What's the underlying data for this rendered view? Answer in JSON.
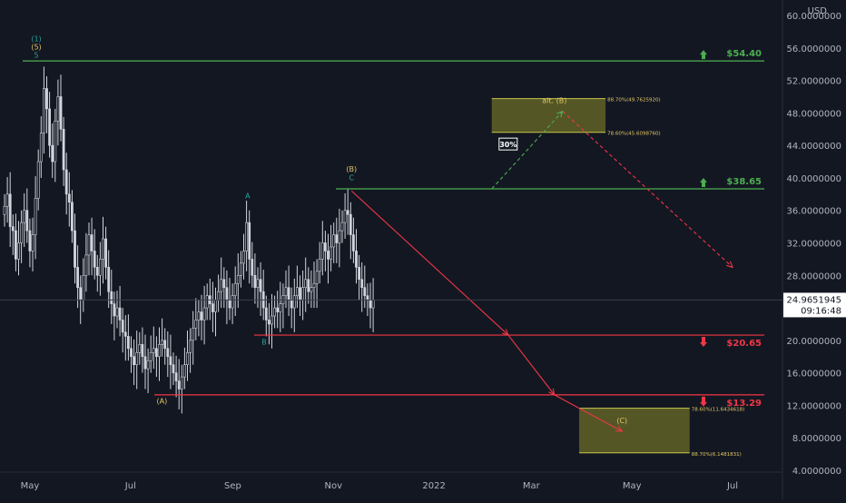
{
  "chart_data": {
    "type": "candlestick",
    "currency_label": "USD",
    "y_axis": {
      "min": 4,
      "max": 60,
      "ticks": [
        "4.0000000",
        "8.0000000",
        "12.0000000",
        "16.0000000",
        "20.0000000",
        "24.0000000",
        "28.0000000",
        "32.0000000",
        "36.0000000",
        "40.0000000",
        "44.0000000",
        "48.0000000",
        "52.0000000",
        "56.0000000",
        "60.0000000"
      ],
      "tick_values": [
        4,
        8,
        12,
        16,
        20,
        24,
        28,
        32,
        36,
        40,
        44,
        48,
        52,
        56,
        60
      ]
    },
    "x_axis": {
      "labels": [
        "May",
        "Jul",
        "Sep",
        "Nov",
        "2022",
        "Mar",
        "May",
        "Jul"
      ],
      "label_dates": [
        "2021-05-01",
        "2021-07-01",
        "2021-09-01",
        "2021-11-01",
        "2022-01-01",
        "2022-03-01",
        "2022-05-01",
        "2022-07-01"
      ]
    },
    "last_price": {
      "value": 24.9651945,
      "label": "24.9651945",
      "countdown": "09:16:48"
    },
    "candles_close": [
      36.5,
      38.0,
      34.0,
      33.5,
      30.0,
      32.0,
      34.5,
      36.0,
      33.5,
      31.0,
      33.0,
      37.5,
      42.0,
      45.5,
      51.0,
      48.5,
      44.0,
      42.0,
      47.0,
      50.0,
      46.0,
      41.0,
      38.0,
      37.0,
      33.5,
      29.0,
      26.5,
      25.0,
      28.0,
      30.5,
      33.0,
      31.0,
      29.0,
      28.0,
      30.0,
      32.5,
      29.0,
      26.0,
      24.5,
      23.0,
      24.0,
      22.5,
      21.0,
      20.5,
      19.0,
      18.0,
      17.0,
      18.5,
      19.5,
      18.0,
      16.5,
      17.5,
      18.5,
      19.0,
      18.0,
      19.5,
      20.0,
      19.0,
      18.0,
      17.0,
      16.0,
      15.0,
      14.0,
      15.5,
      17.0,
      18.5,
      20.0,
      21.5,
      22.5,
      23.5,
      22.5,
      24.0,
      25.5,
      24.5,
      23.5,
      25.0,
      26.0,
      27.5,
      26.5,
      25.0,
      24.0,
      25.5,
      27.0,
      28.0,
      29.5,
      31.0,
      34.5,
      30.0,
      28.0,
      26.5,
      27.5,
      26.0,
      24.0,
      22.5,
      22.0,
      23.0,
      24.0,
      23.5,
      24.5,
      25.5,
      26.5,
      25.0,
      24.0,
      25.5,
      26.5,
      25.0,
      26.5,
      27.5,
      26.0,
      26.5,
      27.0,
      28.5,
      30.0,
      32.0,
      31.0,
      30.0,
      31.5,
      33.0,
      32.0,
      33.5,
      34.5,
      36.0,
      35.5,
      33.0,
      31.0,
      29.0,
      27.5,
      26.5,
      25.5,
      25.0,
      24.0,
      24.97
    ],
    "levels": [
      {
        "value": 54.4,
        "label": "$54.40",
        "color": "#4caf50",
        "direction": "up"
      },
      {
        "value": 38.65,
        "label": "$38.65",
        "color": "#4caf50",
        "direction": "up"
      },
      {
        "value": 20.65,
        "label": "$20.65",
        "color": "#f23645",
        "direction": "down"
      },
      {
        "value": 13.29,
        "label": "$13.29",
        "color": "#f23645",
        "direction": "down"
      }
    ],
    "wave_labels": [
      {
        "text": "(1)",
        "color": "#26a69a",
        "date": "2021-05-01",
        "price": 56.8
      },
      {
        "text": "(5)",
        "color": "#e3c865",
        "date": "2021-05-01",
        "price": 55.8
      },
      {
        "text": "5",
        "color": "#26a69a",
        "date": "2021-05-01",
        "price": 54.8
      },
      {
        "text": "A",
        "color": "#26a69a",
        "date": "2021-09-10",
        "price": 37.5
      },
      {
        "text": "(B)",
        "color": "#e3c865",
        "date": "2021-11-12",
        "price": 40.8
      },
      {
        "text": "C",
        "color": "#26a69a",
        "date": "2021-11-12",
        "price": 39.7
      },
      {
        "text": "B",
        "color": "#26a69a",
        "date": "2021-09-20",
        "price": 19.5
      },
      {
        "text": "(A)",
        "color": "#e3c865",
        "date": "2021-07-20",
        "price": 12.2
      },
      {
        "text": "alt. (B)",
        "color": "#e3c865",
        "date": "2022-03-15",
        "price": 49.2
      },
      {
        "text": "(C)",
        "color": "#e3c865",
        "date": "2022-04-25",
        "price": 9.8
      }
    ],
    "target_zones": [
      {
        "top_label": "88.70%(49.7625920)",
        "bottom_label": "78.60%(45.6098760)",
        "top": 49.76,
        "bottom": 45.61,
        "start": "2022-02-05",
        "end": "2022-04-15"
      },
      {
        "top_label": "78.60%(11.6434618)",
        "bottom_label": "88.70%(6.1481831)",
        "top": 11.64,
        "bottom": 6.15,
        "start": "2022-03-30",
        "end": "2022-06-05"
      }
    ],
    "probability_badge": "30%",
    "projections": [
      {
        "style": "solid",
        "color": "#f23645",
        "from_date": "2021-11-12",
        "from_price": 38.4,
        "to_date": "2022-02-15",
        "to_price": 20.65
      },
      {
        "style": "solid",
        "color": "#f23645",
        "from_date": "2022-02-15",
        "from_price": 20.65,
        "to_date": "2022-03-15",
        "to_price": 13.29
      },
      {
        "style": "solid",
        "color": "#f23645",
        "from_date": "2022-03-15",
        "from_price": 13.29,
        "to_date": "2022-04-25",
        "to_price": 8.8
      },
      {
        "style": "dashed",
        "color": "#4caf50",
        "from_date": "2022-02-05",
        "from_price": 38.65,
        "to_date": "2022-03-20",
        "to_price": 48.2
      },
      {
        "style": "dashed",
        "color": "#f23645",
        "from_date": "2022-03-20",
        "from_price": 48.2,
        "to_date": "2022-07-01",
        "to_price": 29.0
      }
    ],
    "line_colors": {
      "support": "#f23645",
      "resistance": "#4caf50",
      "candles": "#d1d4dc",
      "zone": "#8b8b2a"
    },
    "grid": false
  }
}
